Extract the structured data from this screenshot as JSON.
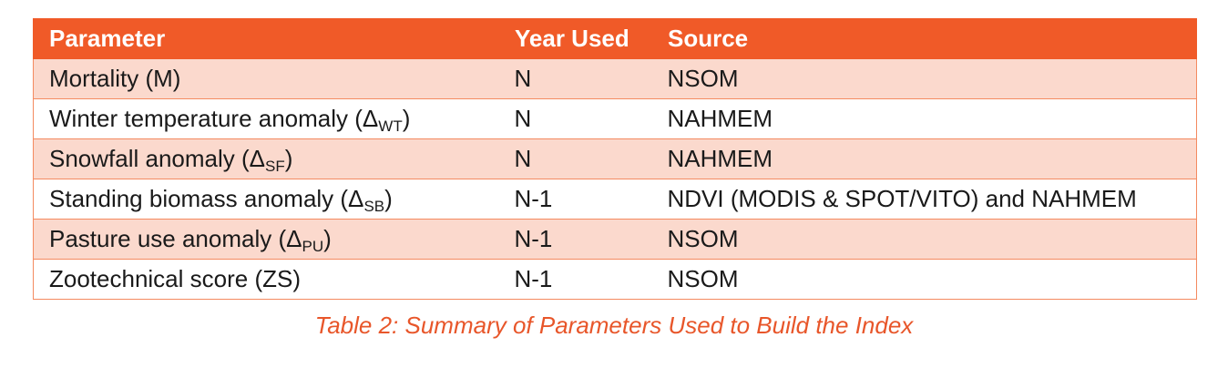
{
  "table": {
    "headers": [
      "Parameter",
      "Year Used",
      "Source"
    ],
    "rows": [
      {
        "param": "Mortality (M)",
        "param_sub": "",
        "param_close": "",
        "year": "N",
        "source": "NSOM"
      },
      {
        "param": "Winter temperature anomaly (Δ",
        "param_sub": "WT",
        "param_close": ")",
        "year": "N",
        "source": "NAHMEM"
      },
      {
        "param": "Snowfall anomaly (Δ",
        "param_sub": "SF",
        "param_close": ")",
        "year": "N",
        "source": "NAHMEM"
      },
      {
        "param": "Standing biomass anomaly (Δ",
        "param_sub": "SB",
        "param_close": ")",
        "year": "N-1",
        "source": "NDVI (MODIS & SPOT/VITO) and NAHMEM"
      },
      {
        "param": "Pasture use anomaly (Δ",
        "param_sub": "PU",
        "param_close": ")",
        "year": "N-1",
        "source": "NSOM"
      },
      {
        "param": "Zootechnical score (ZS)",
        "param_sub": "",
        "param_close": "",
        "year": "N-1",
        "source": "NSOM"
      }
    ]
  },
  "caption": "Table 2: Summary of Parameters Used to Build the Index",
  "colors": {
    "header_bg": "#f05a28",
    "stripe_bg": "#fbd9cd",
    "border": "#f48a60",
    "caption": "#e8562a"
  }
}
